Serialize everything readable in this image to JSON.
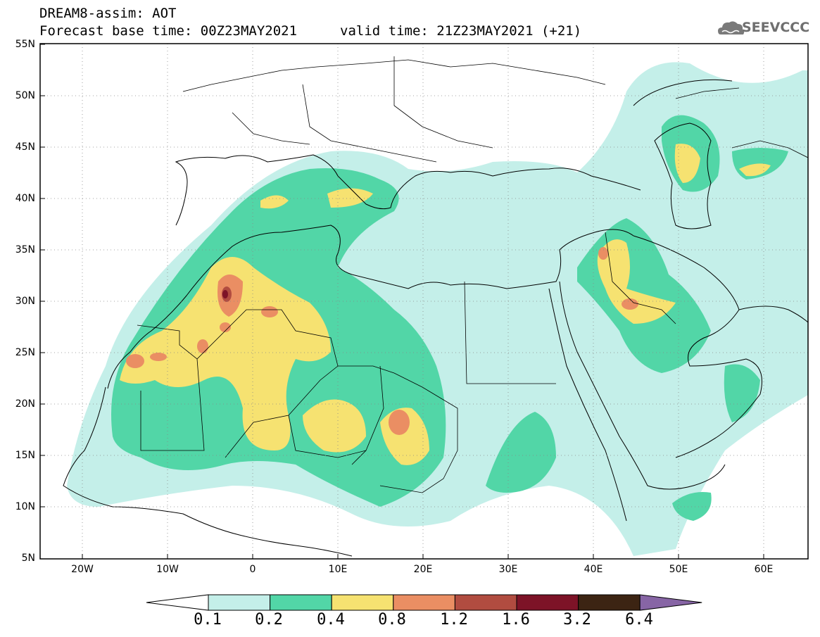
{
  "header": {
    "model_line": "DREAM8-assim: AOT",
    "base_time_line": "Forecast base time: 00Z23MAY2021",
    "valid_time_line": "valid time: 21Z23MAY2021 (+21)",
    "logo_text": "SEEVCCC"
  },
  "map": {
    "region": "North Africa, Middle East and Europe",
    "lat_labels": [
      "55N",
      "50N",
      "45N",
      "40N",
      "35N",
      "30N",
      "25N",
      "20N",
      "15N",
      "10N",
      "5N"
    ],
    "lon_labels": [
      "20W",
      "10W",
      "0",
      "10E",
      "20E",
      "30E",
      "40E",
      "50E",
      "60E"
    ],
    "grid": "dotted"
  },
  "colorbar": {
    "levels": [
      "0.1",
      "0.2",
      "0.4",
      "0.8",
      "1.2",
      "1.6",
      "3.2",
      "6.4"
    ],
    "colors": [
      "#c4efe9",
      "#52d6a7",
      "#f6e271",
      "#ea8e63",
      "#b14c40",
      "#7d1327",
      "#3c2413",
      "#8765a5"
    ],
    "low_end_color": "#ffffff"
  }
}
